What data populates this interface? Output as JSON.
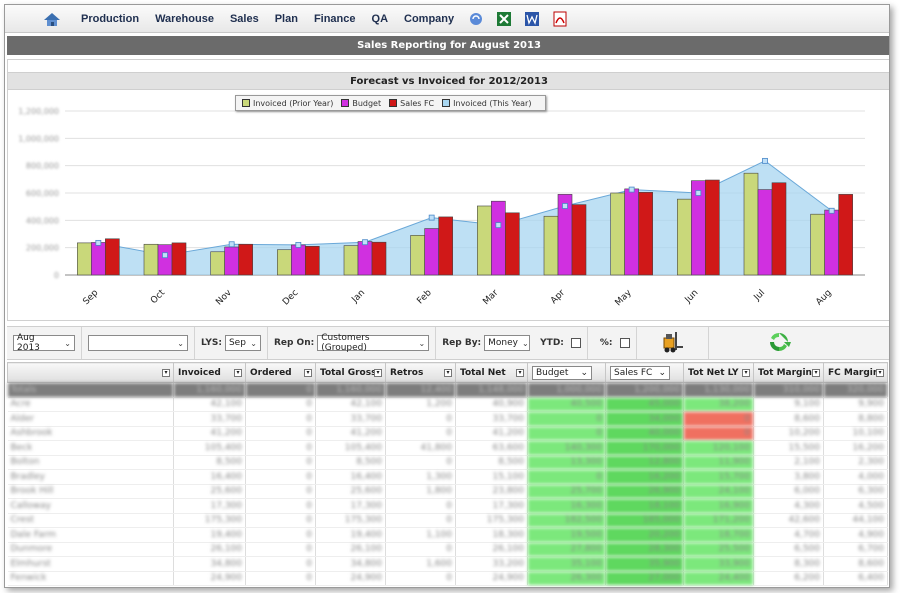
{
  "menu": {
    "items": [
      "Production",
      "Warehouse",
      "Sales",
      "Plan",
      "Finance",
      "QA",
      "Company"
    ]
  },
  "header": {
    "title": "Sales Reporting for August 2013"
  },
  "chart_section": {
    "title": "Forecast vs Invoiced for 2012/2013"
  },
  "chart_data": {
    "type": "bar",
    "title": "Forecast vs Invoiced for 2012/2013",
    "categories": [
      "Sep",
      "Oct",
      "Nov",
      "Dec",
      "Jan",
      "Feb",
      "Mar",
      "Apr",
      "May",
      "Jun",
      "Jul",
      "Aug"
    ],
    "ylim": [
      0,
      1200000
    ],
    "series": [
      {
        "name": "Invoiced (Prior Year)",
        "type": "bar",
        "color": "#c9d87a",
        "values": [
          235000,
          225000,
          170000,
          185000,
          215000,
          290000,
          505000,
          430000,
          600000,
          555000,
          745000,
          445000
        ]
      },
      {
        "name": "Budget",
        "type": "bar",
        "color": "#d030e0",
        "values": [
          238000,
          222000,
          205000,
          220000,
          245000,
          340000,
          540000,
          590000,
          630000,
          690000,
          625000,
          475000
        ]
      },
      {
        "name": "Sales FC",
        "type": "bar",
        "color": "#d01818",
        "values": [
          265000,
          235000,
          225000,
          210000,
          240000,
          425000,
          455000,
          515000,
          605000,
          695000,
          675000,
          590000
        ]
      },
      {
        "name": "Invoiced (This Year)",
        "type": "area",
        "color": "#a8d6f0",
        "values": [
          235000,
          145000,
          225000,
          220000,
          240000,
          420000,
          365000,
          505000,
          625000,
          600000,
          835000,
          470000
        ]
      }
    ],
    "legend_position": "top-center",
    "grid": true
  },
  "controls": {
    "period": "Aug 2013",
    "second_select": "",
    "lys_label": "LYS:",
    "lys_value": "Sep",
    "rep_on_label": "Rep On:",
    "rep_on_value": "Customers (Grouped)",
    "rep_by_label": "Rep By:",
    "rep_by_value": "Money",
    "ytd_label": "YTD:",
    "pct_label": "%:"
  },
  "table": {
    "columns": [
      "",
      "Invoiced",
      "Ordered",
      "Total Gross",
      "Retros",
      "Total Net",
      "Budget",
      "Sales FC",
      "Tot Net LY",
      "Tot Margin",
      "FC Margin"
    ],
    "rows": [
      [
        "Totals",
        "1,160,000",
        "0",
        "1,160,000",
        "12,400",
        "1,148,000",
        "1,000,000",
        "1,200,000",
        "1,130,000",
        "310,000",
        "320,000"
      ],
      [
        "Acre",
        "42,100",
        "0",
        "42,100",
        "1,200",
        "40,900",
        "40,500",
        "45,000",
        "38,200",
        "9,100",
        "9,900"
      ],
      [
        "Alder",
        "33,700",
        "0",
        "33,700",
        "0",
        "33,700",
        "0",
        "34,000",
        "0",
        "8,600",
        "8,800"
      ],
      [
        "Ashbrook",
        "41,200",
        "0",
        "41,200",
        "0",
        "41,200",
        "0",
        "40,000",
        "0",
        "10,200",
        "10,100"
      ],
      [
        "Beck",
        "105,400",
        "0",
        "105,400",
        "41,800",
        "63,600",
        "140,300",
        "170,000",
        "120,100",
        "15,500",
        "16,200"
      ],
      [
        "Bolton",
        "8,500",
        "0",
        "8,500",
        "0",
        "8,500",
        "13,300",
        "12,800",
        "11,900",
        "2,100",
        "2,300"
      ],
      [
        "Bradley",
        "16,400",
        "0",
        "16,400",
        "1,300",
        "15,100",
        "0",
        "16,200",
        "15,700",
        "3,800",
        "4,000"
      ],
      [
        "Brook Hill",
        "25,600",
        "0",
        "25,600",
        "1,800",
        "23,800",
        "25,700",
        "26,900",
        "24,100",
        "6,000",
        "6,300"
      ],
      [
        "Calloway",
        "17,300",
        "0",
        "17,300",
        "0",
        "17,300",
        "16,300",
        "18,100",
        "16,900",
        "4,300",
        "4,500"
      ],
      [
        "Crest",
        "175,300",
        "0",
        "175,300",
        "0",
        "175,300",
        "182,500",
        "185,000",
        "171,200",
        "42,600",
        "44,100"
      ],
      [
        "Dale Farm",
        "19,400",
        "0",
        "19,400",
        "1,100",
        "18,300",
        "19,500",
        "20,200",
        "18,700",
        "4,700",
        "4,900"
      ],
      [
        "Dunmore",
        "26,100",
        "0",
        "26,100",
        "0",
        "26,100",
        "27,800",
        "28,300",
        "25,500",
        "6,500",
        "6,700"
      ],
      [
        "Elmhurst",
        "34,800",
        "0",
        "34,800",
        "1,600",
        "33,200",
        "35,100",
        "35,900",
        "33,900",
        "8,300",
        "8,600"
      ],
      [
        "Fenwick",
        "24,900",
        "0",
        "24,900",
        "0",
        "24,900",
        "26,300",
        "27,000",
        "24,400",
        "6,200",
        "6,400"
      ]
    ]
  }
}
